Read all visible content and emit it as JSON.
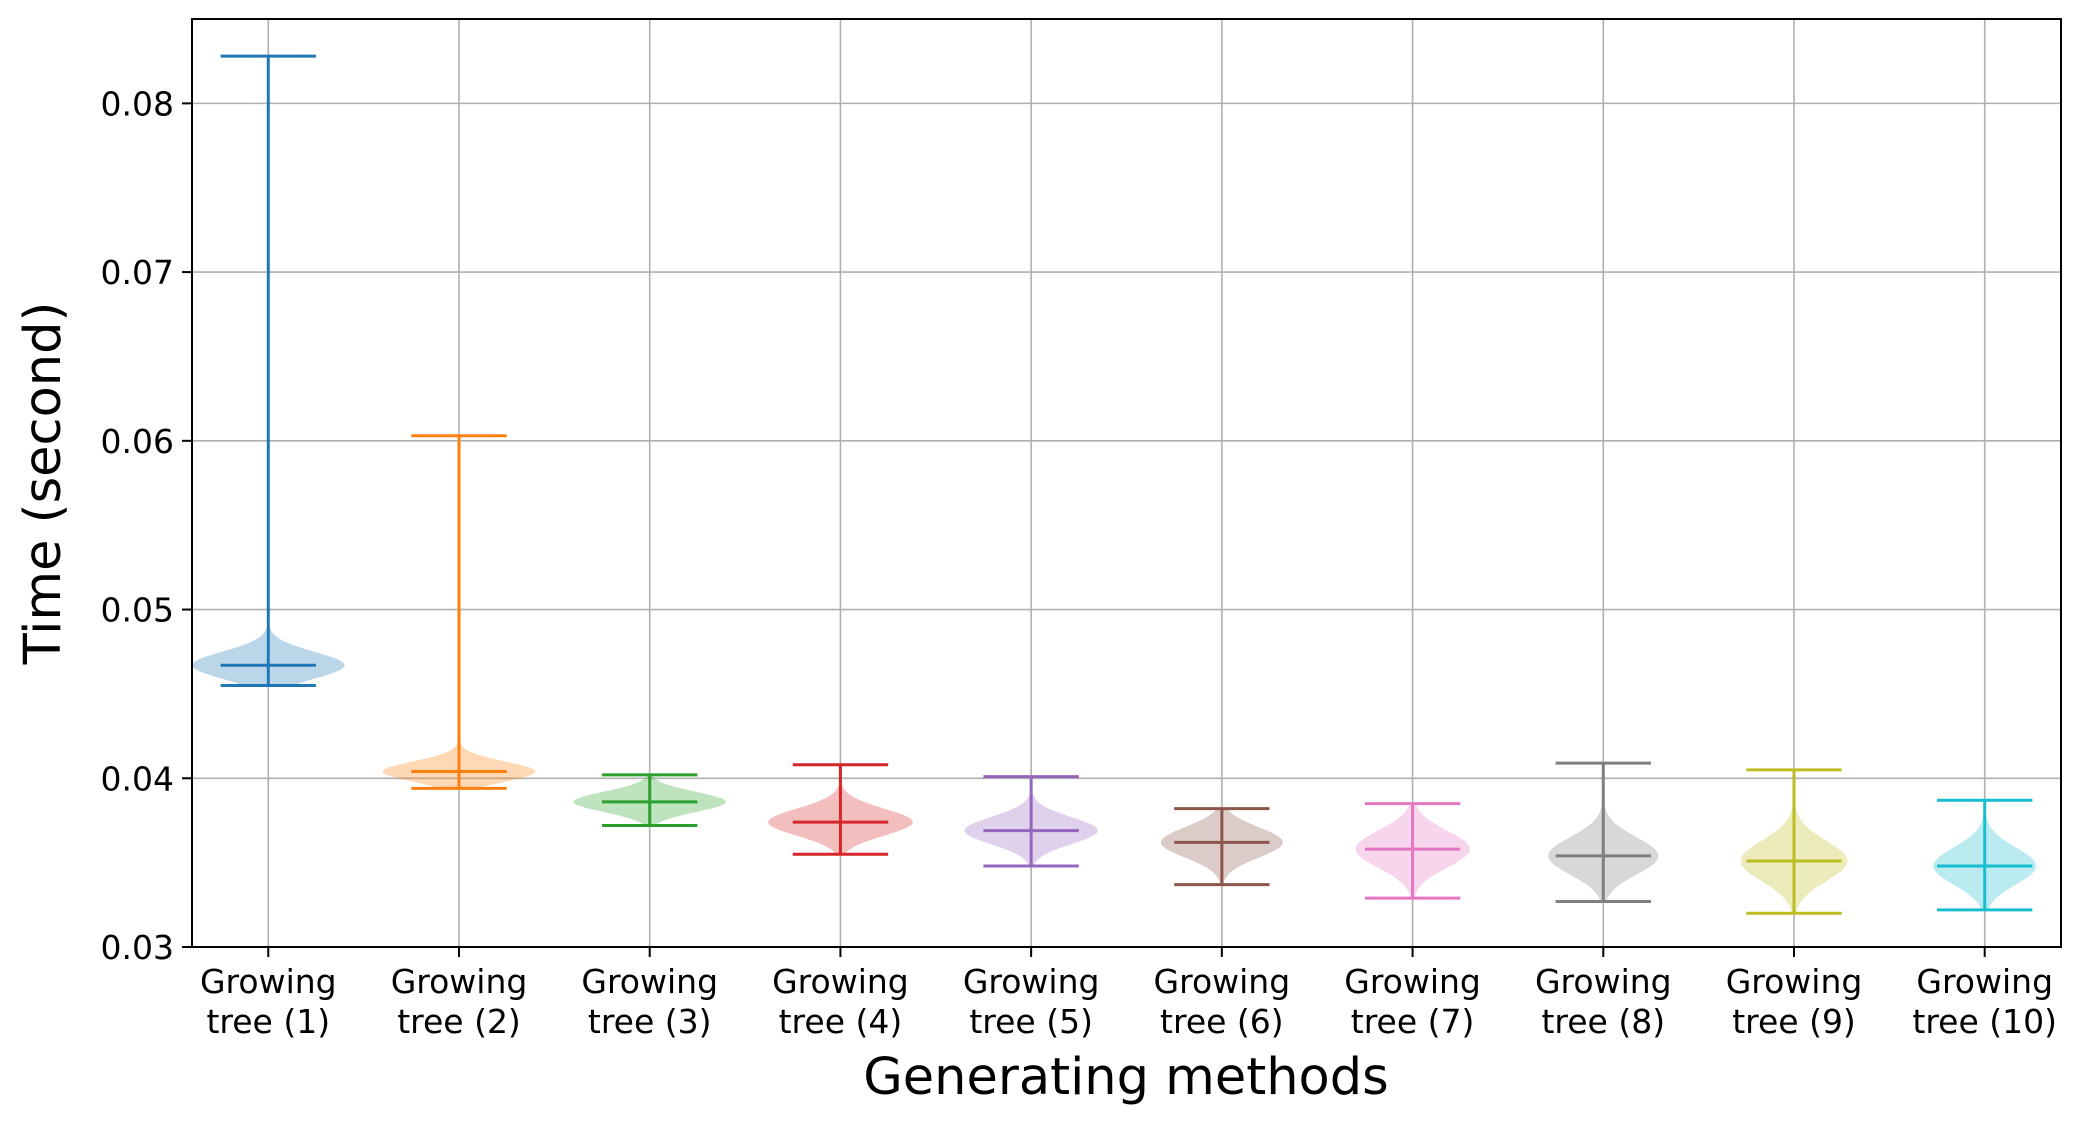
{
  "chart_data": {
    "type": "violin",
    "title": "",
    "xlabel": "Generating methods",
    "ylabel": "Time (second)",
    "ylim": [
      0.03,
      0.085
    ],
    "yticks": [
      {
        "value": 0.03,
        "label": "0.03"
      },
      {
        "value": 0.04,
        "label": "0.04"
      },
      {
        "value": 0.05,
        "label": "0.05"
      },
      {
        "value": 0.06,
        "label": "0.06"
      },
      {
        "value": 0.07,
        "label": "0.07"
      },
      {
        "value": 0.08,
        "label": "0.08"
      }
    ],
    "grid": true,
    "categories": [
      {
        "line1": "Growing",
        "line2": "tree (1)"
      },
      {
        "line1": "Growing",
        "line2": "tree (2)"
      },
      {
        "line1": "Growing",
        "line2": "tree (3)"
      },
      {
        "line1": "Growing",
        "line2": "tree (4)"
      },
      {
        "line1": "Growing",
        "line2": "tree (5)"
      },
      {
        "line1": "Growing",
        "line2": "tree (6)"
      },
      {
        "line1": "Growing",
        "line2": "tree (7)"
      },
      {
        "line1": "Growing",
        "line2": "tree (8)"
      },
      {
        "line1": "Growing",
        "line2": "tree (9)"
      },
      {
        "line1": "Growing",
        "line2": "tree (10)"
      }
    ],
    "series": [
      {
        "name": "Growing tree (1)",
        "color": "#1f77b4",
        "min": 0.0455,
        "max": 0.0828,
        "median": 0.0467,
        "spread": 0.0008,
        "halfwidth": 0.4
      },
      {
        "name": "Growing tree (2)",
        "color": "#ff7f0e",
        "min": 0.0394,
        "max": 0.0603,
        "median": 0.0404,
        "spread": 0.0006,
        "halfwidth": 0.4
      },
      {
        "name": "Growing tree (3)",
        "color": "#2ca02c",
        "min": 0.0372,
        "max": 0.0402,
        "median": 0.0386,
        "spread": 0.0006,
        "halfwidth": 0.4
      },
      {
        "name": "Growing tree (4)",
        "color": "#d62728",
        "min": 0.0355,
        "max": 0.0408,
        "median": 0.0374,
        "spread": 0.0008,
        "halfwidth": 0.38
      },
      {
        "name": "Growing tree (5)",
        "color": "#9467bd",
        "min": 0.0348,
        "max": 0.0401,
        "median": 0.0369,
        "spread": 0.0008,
        "halfwidth": 0.35
      },
      {
        "name": "Growing tree (6)",
        "color": "#8c564b",
        "min": 0.0337,
        "max": 0.0382,
        "median": 0.0362,
        "spread": 0.0009,
        "halfwidth": 0.32
      },
      {
        "name": "Growing tree (7)",
        "color": "#e377c2",
        "min": 0.0329,
        "max": 0.0385,
        "median": 0.0358,
        "spread": 0.0011,
        "halfwidth": 0.3
      },
      {
        "name": "Growing tree (8)",
        "color": "#7f7f7f",
        "min": 0.0327,
        "max": 0.0409,
        "median": 0.0354,
        "spread": 0.0011,
        "halfwidth": 0.29
      },
      {
        "name": "Growing tree (9)",
        "color": "#bcbd22",
        "min": 0.032,
        "max": 0.0405,
        "median": 0.0351,
        "spread": 0.0012,
        "halfwidth": 0.28
      },
      {
        "name": "Growing tree (10)",
        "color": "#17becf",
        "min": 0.0322,
        "max": 0.0387,
        "median": 0.0348,
        "spread": 0.0011,
        "halfwidth": 0.27
      }
    ]
  }
}
